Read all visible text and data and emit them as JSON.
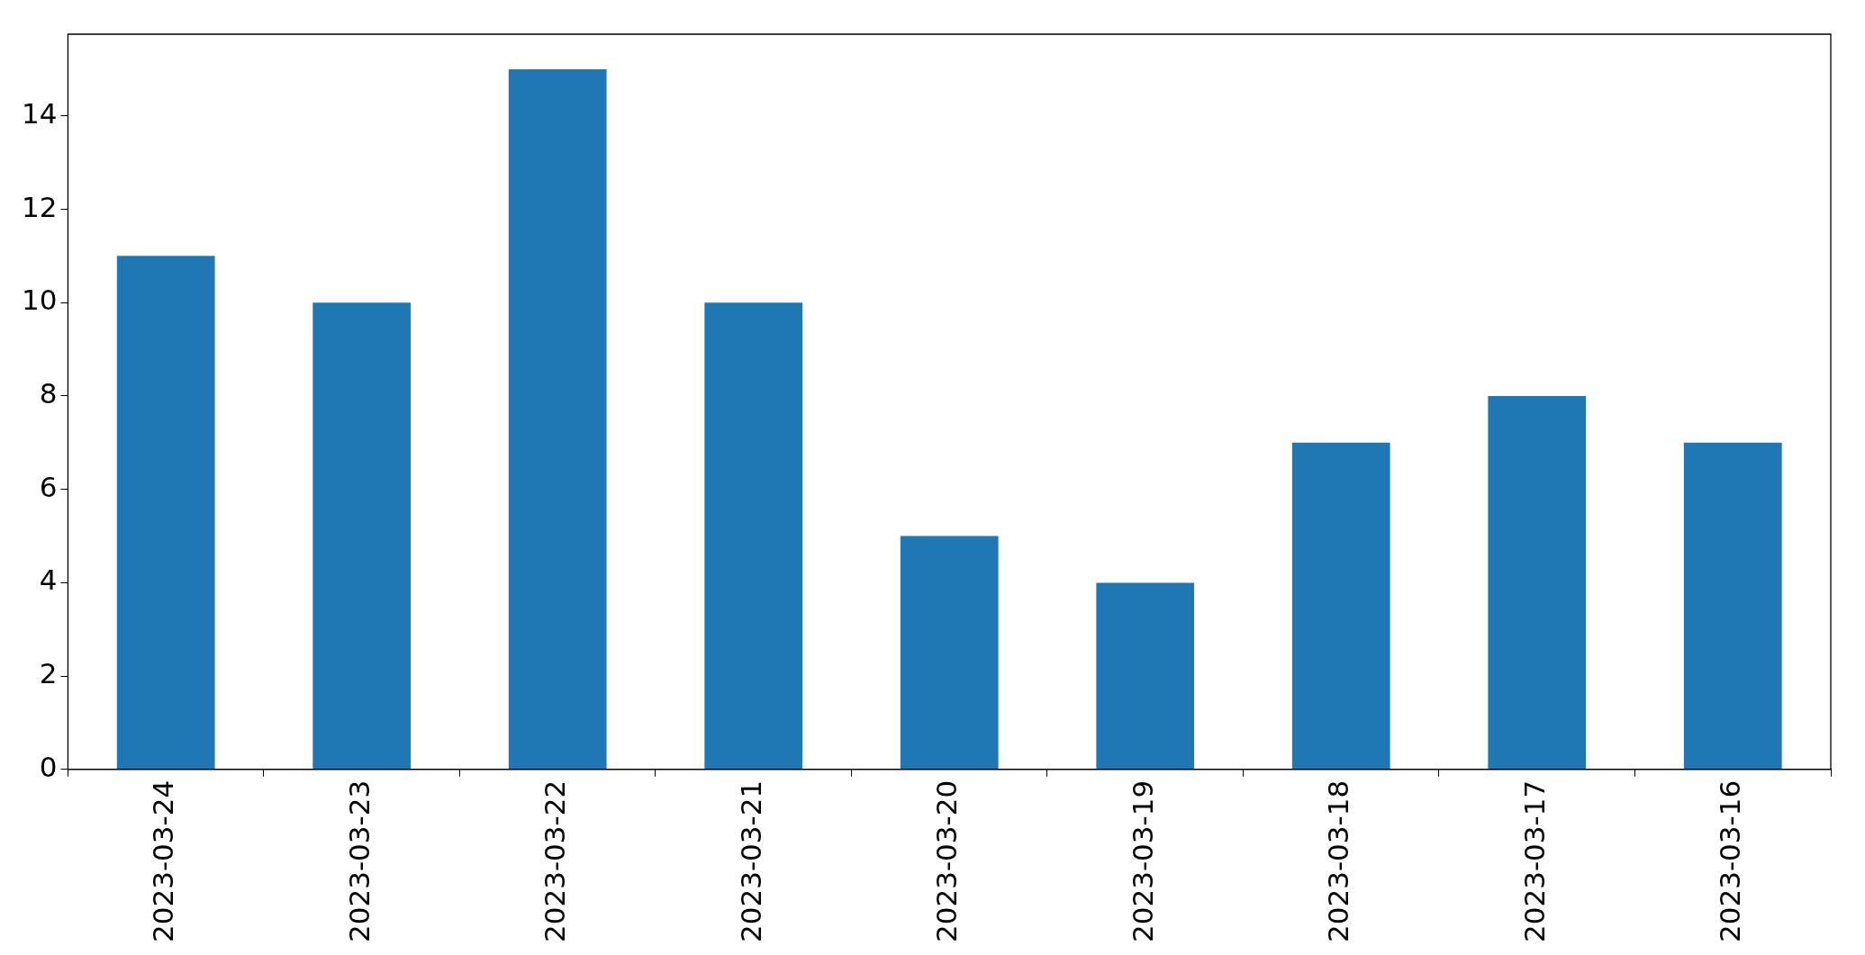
{
  "chart_data": {
    "type": "bar",
    "categories": [
      "2023-03-24",
      "2023-03-23",
      "2023-03-22",
      "2023-03-21",
      "2023-03-20",
      "2023-03-19",
      "2023-03-18",
      "2023-03-17",
      "2023-03-16"
    ],
    "values": [
      11,
      10,
      15,
      10,
      5,
      4,
      7,
      8,
      7
    ],
    "color": "#1f77b4",
    "ylim": [
      0,
      15.75
    ],
    "yticks": [
      0,
      2,
      4,
      6,
      8,
      10,
      12,
      14
    ],
    "grid": false,
    "legend": false
  }
}
